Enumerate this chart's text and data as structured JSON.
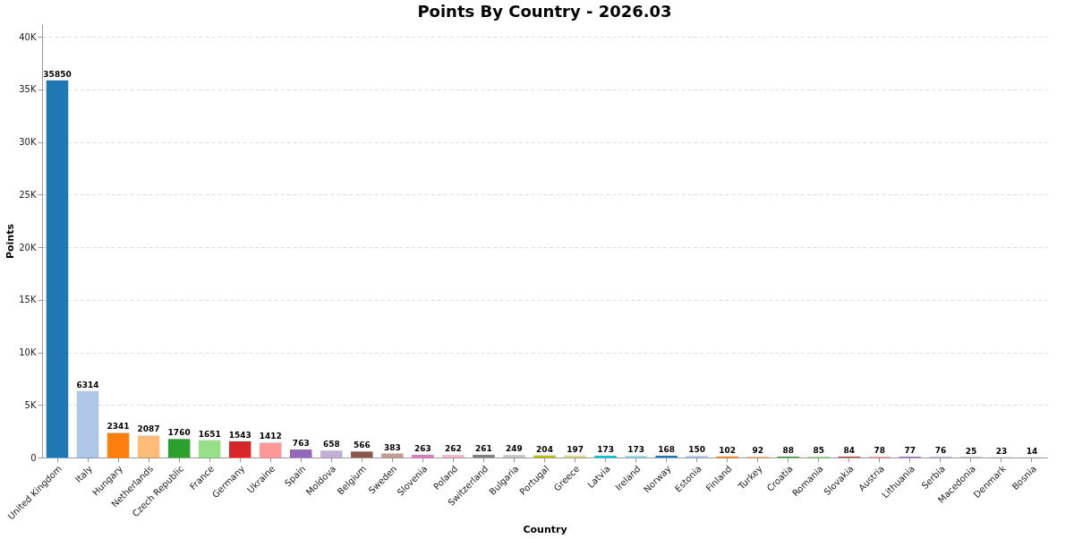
{
  "chart_data": {
    "type": "bar",
    "title": "Points By Country - 2026.03",
    "xlabel": "Country",
    "ylabel": "Points",
    "categories": [
      "United Kingdom",
      "Italy",
      "Hungary",
      "Netherlands",
      "Czech Republic",
      "France",
      "Germany",
      "Ukraine",
      "Spain",
      "Moldova",
      "Belgium",
      "Sweden",
      "Slovenia",
      "Poland",
      "Switzerland",
      "Bulgaria",
      "Portugal",
      "Greece",
      "Latvia",
      "Ireland",
      "Norway",
      "Estonia",
      "Finland",
      "Turkey",
      "Croatia",
      "Romania",
      "Slovakia",
      "Austria",
      "Lithuania",
      "Serbia",
      "Macedonia",
      "Denmark",
      "Bosnia"
    ],
    "values": [
      35850,
      6314,
      2341,
      2087,
      1760,
      1651,
      1543,
      1412,
      763,
      658,
      566,
      383,
      263,
      262,
      261,
      249,
      204,
      197,
      173,
      173,
      168,
      150,
      102,
      92,
      88,
      85,
      84,
      78,
      77,
      76,
      25,
      23,
      14
    ],
    "colors": [
      "#1f77b4",
      "#aec7e8",
      "#ff7f0e",
      "#ffbb78",
      "#2ca02c",
      "#98df8a",
      "#d62728",
      "#ff9896",
      "#9467bd",
      "#c5b0d5",
      "#8c564b",
      "#c49c94",
      "#e377c2",
      "#f7b6d2",
      "#7f7f7f",
      "#c7c7c7",
      "#bcbd22",
      "#dbdb8d",
      "#17becf",
      "#9edae5",
      "#1f77b4",
      "#aec7e8",
      "#ff7f0e",
      "#ffbb78",
      "#2ca02c",
      "#98df8a",
      "#d62728",
      "#ff9896",
      "#9467bd",
      "#c5b0d5",
      "#8c564b",
      "#c49c94",
      "#e377c2"
    ],
    "ylim": [
      0,
      41200
    ],
    "yticks": [
      0,
      {
        "value": 5000,
        "label": "5K"
      },
      {
        "value": 10000,
        "label": "10K"
      },
      {
        "value": 15000,
        "label": "15K"
      },
      {
        "value": 20000,
        "label": "20K"
      },
      {
        "value": 25000,
        "label": "25K"
      },
      {
        "value": 30000,
        "label": "30K"
      },
      {
        "value": 35000,
        "label": "35K"
      },
      {
        "value": 40000,
        "label": "40K"
      }
    ],
    "grid": "y",
    "data_labels": true
  }
}
